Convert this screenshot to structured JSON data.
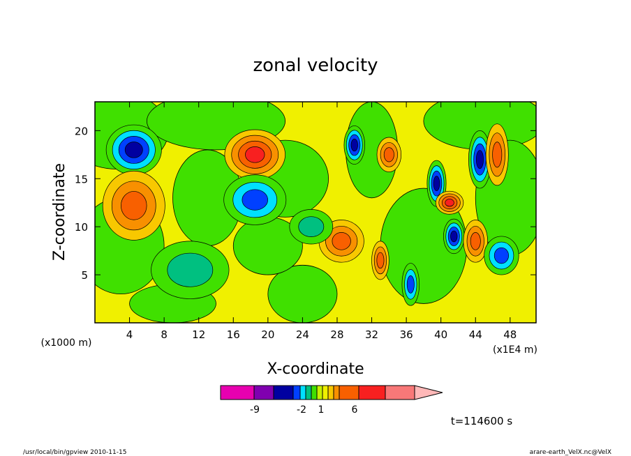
{
  "chart_data": {
    "type": "heatmap",
    "title": "zonal velocity",
    "xlabel": "X-coordinate",
    "ylabel": "Z-coordinate",
    "x_unit_label": "(x1E4 m)",
    "y_unit_label": "(x1000 m)",
    "xlim": [
      0,
      51
    ],
    "ylim": [
      0,
      23
    ],
    "x_ticks": [
      "4",
      "8",
      "12",
      "16",
      "20",
      "24",
      "28",
      "32",
      "36",
      "40",
      "44",
      "48"
    ],
    "y_ticks": [
      "5",
      "10",
      "15",
      "20"
    ],
    "colorbar": {
      "levels": [
        {
          "color": "#e800b0"
        },
        {
          "color": "#8000b0"
        },
        {
          "color": "#0000a0"
        },
        {
          "color": "#0040ff"
        },
        {
          "color": "#00e0ff"
        },
        {
          "color": "#00c080"
        },
        {
          "color": "#40e000"
        },
        {
          "color": "#c8f000"
        },
        {
          "color": "#f0f000"
        },
        {
          "color": "#f8c800"
        },
        {
          "color": "#f89000"
        },
        {
          "color": "#f86000"
        },
        {
          "color": "#f82020"
        },
        {
          "color": "#f87878"
        },
        {
          "color": "#ffb8b8"
        }
      ],
      "labels": [
        "-9",
        "-2",
        "1",
        "6"
      ]
    },
    "time_label": "t=114600 s",
    "footer_left": "/usr/local/bin/gpview  2010-11-15",
    "footer_right": "arare-earth_VelX.nc@VelX",
    "blobs": [
      {
        "x": 4.5,
        "z": 18.0,
        "rx": 3.2,
        "rz": 2.6,
        "level": "neg_strong"
      },
      {
        "x": 4.5,
        "z": 12.2,
        "rx": 3.6,
        "rz": 3.6,
        "level": "pos_mid"
      },
      {
        "x": 18.5,
        "z": 17.5,
        "rx": 3.5,
        "rz": 2.6,
        "level": "pos_strong"
      },
      {
        "x": 18.5,
        "z": 12.8,
        "rx": 3.6,
        "rz": 2.6,
        "level": "neg_mid"
      },
      {
        "x": 28.5,
        "z": 8.5,
        "rx": 2.6,
        "rz": 2.2,
        "level": "pos_mid"
      },
      {
        "x": 30.0,
        "z": 18.5,
        "rx": 1.2,
        "rz": 2.0,
        "level": "neg_strong"
      },
      {
        "x": 34.0,
        "z": 17.5,
        "rx": 1.4,
        "rz": 1.8,
        "level": "pos_mid"
      },
      {
        "x": 39.5,
        "z": 14.5,
        "rx": 1.1,
        "rz": 2.4,
        "level": "neg_strong"
      },
      {
        "x": 41.0,
        "z": 12.5,
        "rx": 1.6,
        "rz": 1.2,
        "level": "pos_strong"
      },
      {
        "x": 44.5,
        "z": 17.0,
        "rx": 1.3,
        "rz": 3.0,
        "level": "neg_strong"
      },
      {
        "x": 46.5,
        "z": 17.5,
        "rx": 1.3,
        "rz": 3.2,
        "level": "pos_mid"
      },
      {
        "x": 41.5,
        "z": 9.0,
        "rx": 1.2,
        "rz": 1.8,
        "level": "neg_strong"
      },
      {
        "x": 44.0,
        "z": 8.5,
        "rx": 1.4,
        "rz": 2.2,
        "level": "pos_mid"
      },
      {
        "x": 47.0,
        "z": 7.0,
        "rx": 2.0,
        "rz": 2.0,
        "level": "neg_mid"
      },
      {
        "x": 36.5,
        "z": 4.0,
        "rx": 1.0,
        "rz": 2.2,
        "level": "neg_mid"
      },
      {
        "x": 33.0,
        "z": 6.5,
        "rx": 1.0,
        "rz": 2.0,
        "level": "pos_mid"
      },
      {
        "x": 25.0,
        "z": 10.0,
        "rx": 2.5,
        "rz": 1.8,
        "level": "neg_weak"
      },
      {
        "x": 11.0,
        "z": 5.5,
        "rx": 4.5,
        "rz": 3.0,
        "level": "neg_weak"
      }
    ]
  }
}
